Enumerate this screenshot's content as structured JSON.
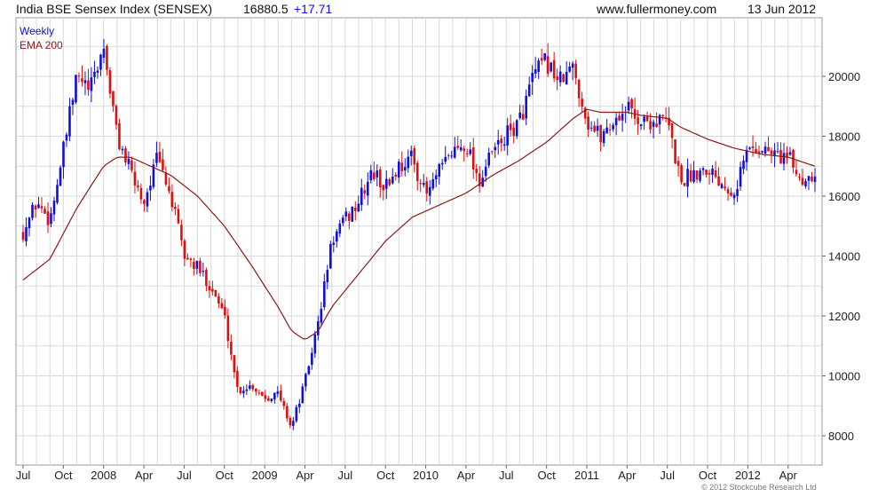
{
  "header": {
    "instrument": "India BSE Sensex Index (SENSEX)",
    "last": "16880.5",
    "change": "+17.71",
    "source": "www.fullermoney.com",
    "date": "13 Jun 2012"
  },
  "copyright": "© 2012 Stockcube Research Ltd",
  "colors": {
    "up": "#1010dd",
    "down": "#dd1010",
    "ema": "#8b1a1a",
    "grid": "#d9d9d9"
  },
  "chart_data": {
    "type": "candlestick",
    "legend": [
      "Weekly",
      "EMA 200"
    ],
    "ylim": [
      7500,
      22000
    ],
    "y_ticks": [
      8000,
      10000,
      12000,
      14000,
      16000,
      18000,
      20000
    ],
    "x_ticks": [
      {
        "label": "Jul",
        "x": 0
      },
      {
        "label": "Oct",
        "x": 3
      },
      {
        "label": "2008",
        "x": 6
      },
      {
        "label": "Apr",
        "x": 9
      },
      {
        "label": "Jul",
        "x": 12
      },
      {
        "label": "Oct",
        "x": 15
      },
      {
        "label": "2009",
        "x": 18
      },
      {
        "label": "Apr",
        "x": 21
      },
      {
        "label": "Jul",
        "x": 24
      },
      {
        "label": "Oct",
        "x": 27
      },
      {
        "label": "2010",
        "x": 30
      },
      {
        "label": "Apr",
        "x": 33
      },
      {
        "label": "Jul",
        "x": 36
      },
      {
        "label": "Oct",
        "x": 39
      },
      {
        "label": "2011",
        "x": 42
      },
      {
        "label": "Apr",
        "x": 45
      },
      {
        "label": "Jul",
        "x": 48
      },
      {
        "label": "Oct",
        "x": 51
      },
      {
        "label": "2012",
        "x": 54
      },
      {
        "label": "Apr",
        "x": 57
      }
    ],
    "price_path": [
      [
        0,
        14800
      ],
      [
        1,
        15800
      ],
      [
        2,
        15200
      ],
      [
        3,
        17500
      ],
      [
        4,
        20000
      ],
      [
        5,
        19500
      ],
      [
        6,
        21000
      ],
      [
        7,
        18000
      ],
      [
        8,
        16800
      ],
      [
        9,
        15800
      ],
      [
        10,
        17300
      ],
      [
        11,
        16000
      ],
      [
        12,
        14000
      ],
      [
        13,
        13600
      ],
      [
        14,
        13000
      ],
      [
        15,
        12000
      ],
      [
        16,
        9500
      ],
      [
        17,
        9700
      ],
      [
        18,
        9300
      ],
      [
        19,
        9400
      ],
      [
        20,
        8300
      ],
      [
        21,
        9800
      ],
      [
        22,
        11800
      ],
      [
        23,
        14500
      ],
      [
        24,
        15200
      ],
      [
        25,
        15800
      ],
      [
        26,
        16800
      ],
      [
        27,
        16300
      ],
      [
        28,
        17000
      ],
      [
        29,
        17300
      ],
      [
        30,
        16000
      ],
      [
        31,
        16800
      ],
      [
        32,
        17500
      ],
      [
        33,
        17800
      ],
      [
        34,
        16500
      ],
      [
        35,
        17500
      ],
      [
        36,
        18000
      ],
      [
        37,
        18500
      ],
      [
        38,
        20000
      ],
      [
        39,
        20500
      ],
      [
        40,
        19800
      ],
      [
        41,
        20300
      ],
      [
        42,
        18500
      ],
      [
        43,
        18000
      ],
      [
        44,
        18500
      ],
      [
        45,
        19000
      ],
      [
        46,
        18500
      ],
      [
        47,
        18500
      ],
      [
        48,
        18500
      ],
      [
        49,
        16500
      ],
      [
        50,
        16800
      ],
      [
        51,
        17000
      ],
      [
        52,
        16500
      ],
      [
        53,
        16200
      ],
      [
        54,
        17600
      ],
      [
        55,
        17600
      ],
      [
        56,
        17400
      ],
      [
        57,
        17300
      ],
      [
        58,
        16500
      ],
      [
        59,
        16880
      ]
    ],
    "ema_path": [
      [
        0,
        13200
      ],
      [
        2,
        13900
      ],
      [
        4,
        15600
      ],
      [
        6,
        17000
      ],
      [
        7,
        17300
      ],
      [
        8,
        17300
      ],
      [
        9,
        17100
      ],
      [
        11,
        16700
      ],
      [
        13,
        16000
      ],
      [
        15,
        15000
      ],
      [
        17,
        13700
      ],
      [
        19,
        12300
      ],
      [
        20,
        11500
      ],
      [
        21,
        11200
      ],
      [
        22,
        11500
      ],
      [
        23,
        12300
      ],
      [
        25,
        13400
      ],
      [
        27,
        14500
      ],
      [
        29,
        15300
      ],
      [
        31,
        15700
      ],
      [
        33,
        16100
      ],
      [
        35,
        16700
      ],
      [
        37,
        17200
      ],
      [
        39,
        17800
      ],
      [
        41,
        18600
      ],
      [
        42,
        18900
      ],
      [
        43,
        18800
      ],
      [
        45,
        18800
      ],
      [
        46,
        18700
      ],
      [
        48,
        18600
      ],
      [
        49,
        18300
      ],
      [
        51,
        17900
      ],
      [
        53,
        17600
      ],
      [
        55,
        17400
      ],
      [
        57,
        17300
      ],
      [
        59,
        17000
      ]
    ]
  }
}
